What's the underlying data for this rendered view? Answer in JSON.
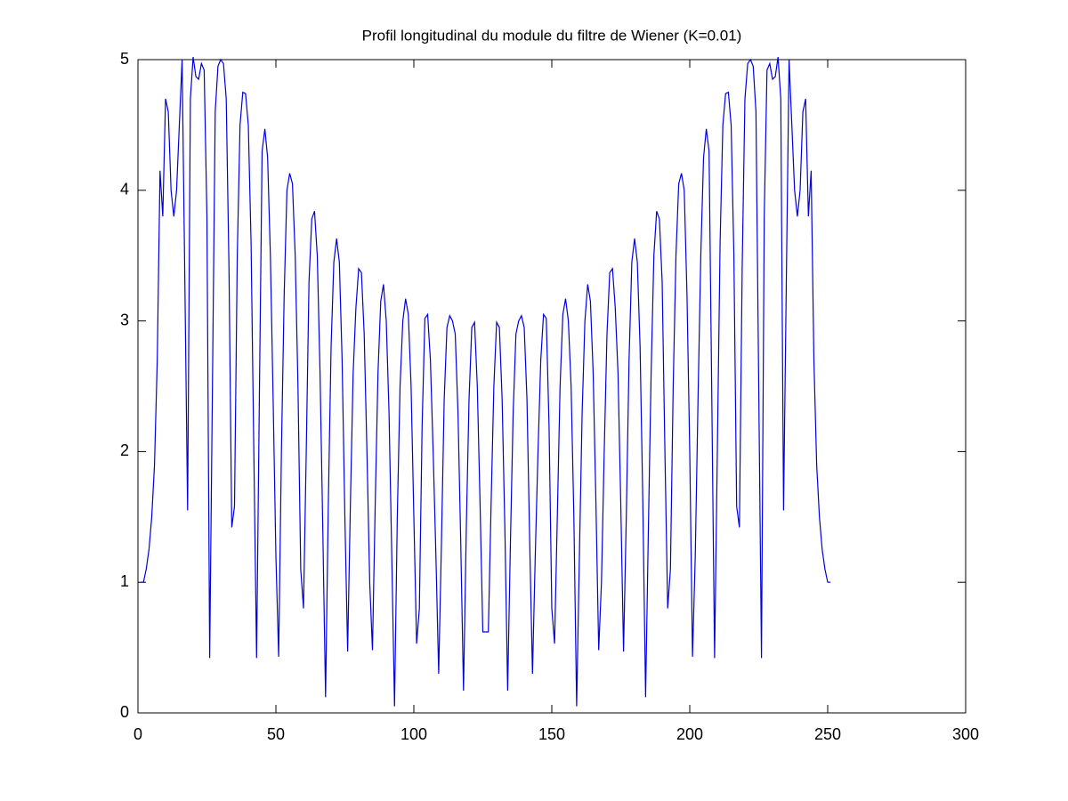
{
  "chart_data": {
    "type": "line",
    "title": "Profil longitudinal du module du filtre de Wiener (K=0.01)",
    "x": [
      1,
      2,
      3,
      4,
      5,
      6,
      7,
      8,
      9,
      10,
      11,
      12,
      13,
      14,
      15,
      16,
      17,
      18,
      19,
      20,
      21,
      22,
      23,
      24,
      25,
      26,
      27,
      28,
      29,
      30,
      31,
      32,
      33,
      34,
      35,
      36,
      37,
      38,
      39,
      40,
      41,
      42,
      43,
      44,
      45,
      46,
      47,
      48,
      49,
      50,
      51,
      52,
      53,
      54,
      55,
      56,
      57,
      58,
      59,
      60,
      61,
      62,
      63,
      64,
      65,
      66,
      67,
      68,
      69,
      70,
      71,
      72,
      73,
      74,
      75,
      76,
      77,
      78,
      79,
      80,
      81,
      82,
      83,
      84,
      85,
      86,
      87,
      88,
      89,
      90,
      91,
      92,
      93,
      94,
      95,
      96,
      97,
      98,
      99,
      100,
      101,
      102,
      103,
      104,
      105,
      106,
      107,
      108,
      109,
      110,
      111,
      112,
      113,
      114,
      115,
      116,
      117,
      118,
      119,
      120,
      121,
      122,
      123,
      124,
      125,
      126,
      127,
      128,
      129,
      130,
      131,
      132,
      133,
      134,
      135,
      136,
      137,
      138,
      139,
      140,
      141,
      142,
      143,
      144,
      145,
      146,
      147,
      148,
      149,
      150,
      151,
      152,
      153,
      154,
      155,
      156,
      157,
      158,
      159,
      160,
      161,
      162,
      163,
      164,
      165,
      166,
      167,
      168,
      169,
      170,
      171,
      172,
      173,
      174,
      175,
      176,
      177,
      178,
      179,
      180,
      181,
      182,
      183,
      184,
      185,
      186,
      187,
      188,
      189,
      190,
      191,
      192,
      193,
      194,
      195,
      196,
      197,
      198,
      199,
      200,
      201,
      202,
      203,
      204,
      205,
      206,
      207,
      208,
      209,
      210,
      211,
      212,
      213,
      214,
      215,
      216,
      217,
      218,
      219,
      220,
      221,
      222,
      223,
      224,
      225,
      226,
      227,
      228,
      229,
      230,
      231,
      232,
      233,
      234,
      235,
      236,
      237,
      238,
      239,
      240,
      241,
      242,
      243,
      244,
      245,
      246,
      247,
      248,
      249,
      250,
      251
    ],
    "series": [
      {
        "color": "#0000e0",
        "values": [
          1.0,
          1.0,
          1.1,
          1.25,
          1.5,
          1.9,
          2.7,
          4.15,
          3.8,
          4.7,
          4.6,
          4.0,
          3.8,
          4.0,
          4.5,
          5.0,
          3.3,
          1.55,
          4.7,
          5.02,
          4.87,
          4.85,
          4.97,
          4.92,
          3.8,
          0.42,
          2.5,
          4.6,
          4.95,
          5.0,
          4.97,
          4.7,
          3.4,
          1.42,
          1.58,
          3.5,
          4.5,
          4.75,
          4.74,
          4.5,
          3.6,
          2.0,
          0.42,
          2.4,
          4.3,
          4.47,
          4.25,
          3.5,
          2.4,
          1.2,
          0.43,
          2.0,
          3.2,
          4.0,
          4.13,
          4.05,
          3.5,
          2.5,
          1.1,
          0.8,
          2.0,
          3.3,
          3.78,
          3.84,
          3.5,
          2.6,
          1.4,
          0.12,
          1.6,
          2.8,
          3.45,
          3.63,
          3.45,
          2.7,
          1.5,
          0.47,
          1.6,
          2.6,
          3.1,
          3.4,
          3.37,
          2.9,
          2.0,
          1.0,
          0.48,
          1.6,
          2.6,
          3.15,
          3.28,
          3.0,
          2.3,
          1.2,
          0.05,
          1.5,
          2.5,
          3.0,
          3.17,
          3.05,
          2.5,
          1.5,
          0.53,
          0.8,
          2.2,
          3.02,
          3.05,
          2.7,
          2.0,
          1.2,
          0.3,
          1.3,
          2.4,
          2.95,
          3.04,
          3.0,
          2.9,
          2.3,
          1.3,
          0.17,
          1.4,
          2.4,
          2.95,
          2.99,
          2.5,
          1.6,
          0.62,
          0.62,
          0.62,
          1.6,
          2.5,
          2.99,
          2.95,
          2.4,
          1.4,
          0.17,
          1.3,
          2.3,
          2.9,
          3.0,
          3.04,
          2.95,
          2.4,
          1.3,
          0.3,
          1.2,
          2.0,
          2.7,
          3.05,
          3.02,
          2.2,
          0.8,
          0.53,
          1.5,
          2.5,
          3.05,
          3.17,
          3.0,
          2.5,
          1.5,
          0.05,
          1.2,
          2.3,
          3.0,
          3.28,
          3.15,
          2.6,
          1.6,
          0.48,
          1.0,
          2.0,
          2.9,
          3.37,
          3.4,
          3.1,
          2.6,
          1.6,
          0.47,
          1.5,
          2.7,
          3.45,
          3.63,
          3.45,
          2.8,
          1.6,
          0.12,
          1.4,
          2.6,
          3.5,
          3.84,
          3.78,
          3.3,
          2.0,
          0.8,
          1.1,
          2.5,
          3.5,
          4.05,
          4.13,
          4.0,
          3.2,
          2.0,
          0.43,
          1.2,
          2.4,
          3.5,
          4.25,
          4.47,
          4.3,
          2.4,
          0.42,
          2.0,
          3.6,
          4.5,
          4.74,
          4.75,
          4.5,
          3.5,
          1.58,
          1.42,
          3.4,
          4.7,
          4.97,
          5.0,
          4.95,
          4.6,
          2.5,
          0.42,
          3.8,
          4.92,
          4.97,
          4.85,
          4.87,
          5.02,
          4.7,
          1.55,
          3.3,
          5.0,
          4.5,
          4.0,
          3.8,
          4.0,
          4.6,
          4.7,
          3.8,
          4.15,
          2.7,
          1.9,
          1.5,
          1.25,
          1.1,
          1.0,
          1.0
        ]
      }
    ],
    "xlim": [
      0,
      300
    ],
    "xticks": [
      0,
      50,
      100,
      150,
      200,
      250,
      300
    ],
    "ylim": [
      0,
      5
    ],
    "yticks": [
      0,
      1,
      2,
      3,
      4,
      5
    ],
    "grid": false
  }
}
